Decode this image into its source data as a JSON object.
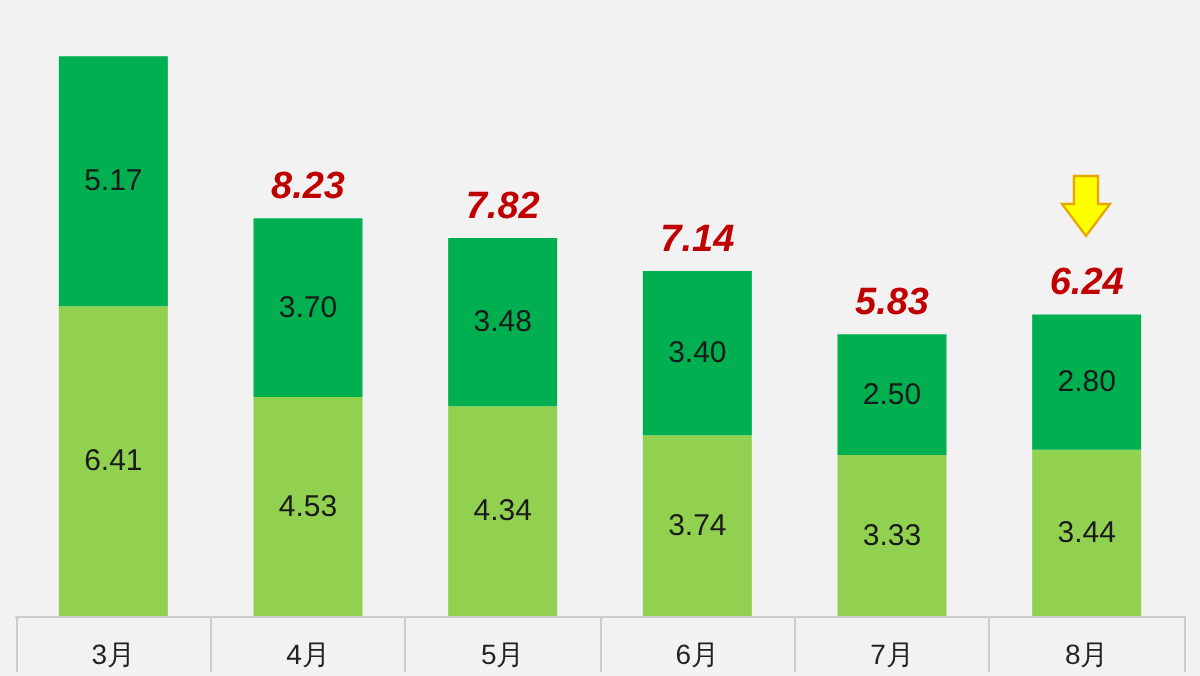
{
  "chart_data": {
    "type": "bar",
    "stacked": true,
    "categories": [
      "3月",
      "4月",
      "5月",
      "6月",
      "7月",
      "8月"
    ],
    "series": [
      {
        "color": "#92d050",
        "values": [
          6.41,
          4.53,
          4.34,
          3.74,
          3.33,
          3.44
        ],
        "value_labels": [
          "6.41",
          "4.53",
          "4.34",
          "3.74",
          "3.33",
          "3.44"
        ]
      },
      {
        "color": "#00b050",
        "values": [
          5.17,
          3.7,
          3.48,
          3.4,
          2.5,
          2.8
        ],
        "value_labels": [
          "5.17",
          "3.70",
          "3.48",
          "3.40",
          "2.50",
          "2.80"
        ]
      }
    ],
    "totals": [
      null,
      "8.23",
      "7.82",
      "7.14",
      "5.83",
      "6.24"
    ]
  }
}
